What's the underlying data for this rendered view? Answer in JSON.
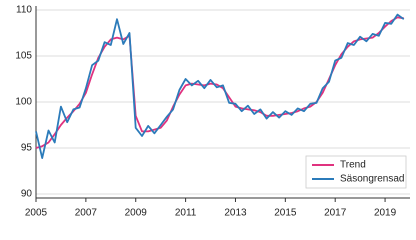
{
  "chart_data": {
    "type": "line",
    "x": [
      2005.0,
      2005.25,
      2005.5,
      2005.75,
      2006.0,
      2006.25,
      2006.5,
      2006.75,
      2007.0,
      2007.25,
      2007.5,
      2007.75,
      2008.0,
      2008.25,
      2008.5,
      2008.75,
      2009.0,
      2009.25,
      2009.5,
      2009.75,
      2010.0,
      2010.25,
      2010.5,
      2010.75,
      2011.0,
      2011.25,
      2011.5,
      2011.75,
      2012.0,
      2012.25,
      2012.5,
      2012.75,
      2013.0,
      2013.25,
      2013.5,
      2013.75,
      2014.0,
      2014.25,
      2014.5,
      2014.75,
      2015.0,
      2015.25,
      2015.5,
      2015.75,
      2016.0,
      2016.25,
      2016.5,
      2016.75,
      2017.0,
      2017.25,
      2017.5,
      2017.75,
      2018.0,
      2018.25,
      2018.5,
      2018.75,
      2019.0,
      2019.25,
      2019.5,
      2019.75
    ],
    "series": [
      {
        "name": "Trend",
        "color": "#e0327f",
        "values": [
          95.0,
          95.2,
          95.6,
          96.5,
          97.5,
          98.3,
          99.0,
          99.8,
          101.0,
          103.0,
          104.8,
          106.0,
          106.8,
          107.0,
          106.8,
          107.2,
          98.5,
          96.8,
          96.8,
          97.0,
          97.2,
          98.0,
          99.5,
          100.8,
          101.8,
          102.0,
          101.9,
          101.8,
          102.0,
          101.9,
          101.5,
          100.5,
          99.5,
          99.3,
          99.2,
          99.1,
          98.9,
          98.5,
          98.5,
          98.6,
          98.7,
          98.8,
          99.0,
          99.3,
          99.5,
          100.0,
          101.0,
          102.5,
          104.0,
          105.2,
          106.0,
          106.6,
          106.8,
          106.9,
          107.0,
          107.5,
          108.2,
          108.8,
          109.2,
          109.1
        ]
      },
      {
        "name": "Säsongrensad",
        "color": "#2b7bba",
        "values": [
          96.8,
          93.9,
          96.9,
          95.6,
          99.5,
          97.8,
          99.2,
          99.4,
          101.5,
          104.0,
          104.5,
          106.5,
          106.2,
          109.0,
          106.3,
          107.5,
          97.2,
          96.3,
          97.4,
          96.6,
          97.5,
          98.4,
          99.2,
          101.3,
          102.5,
          101.8,
          102.3,
          101.5,
          102.4,
          101.6,
          101.8,
          99.9,
          99.8,
          99.0,
          99.6,
          98.7,
          99.2,
          98.2,
          98.9,
          98.3,
          99.0,
          98.6,
          99.3,
          99.0,
          99.8,
          99.9,
          101.5,
          102.2,
          104.5,
          104.8,
          106.4,
          106.2,
          107.1,
          106.6,
          107.4,
          107.2,
          108.6,
          108.5,
          109.5,
          109.0
        ]
      }
    ],
    "xlim": [
      2005,
      2020
    ],
    "xticks": [
      2005,
      2007,
      2009,
      2011,
      2013,
      2015,
      2017,
      2019
    ],
    "ylim": [
      90,
      110
    ],
    "yticks": [
      90,
      95,
      100,
      105,
      110
    ],
    "grid": true,
    "legend": "lower right"
  }
}
